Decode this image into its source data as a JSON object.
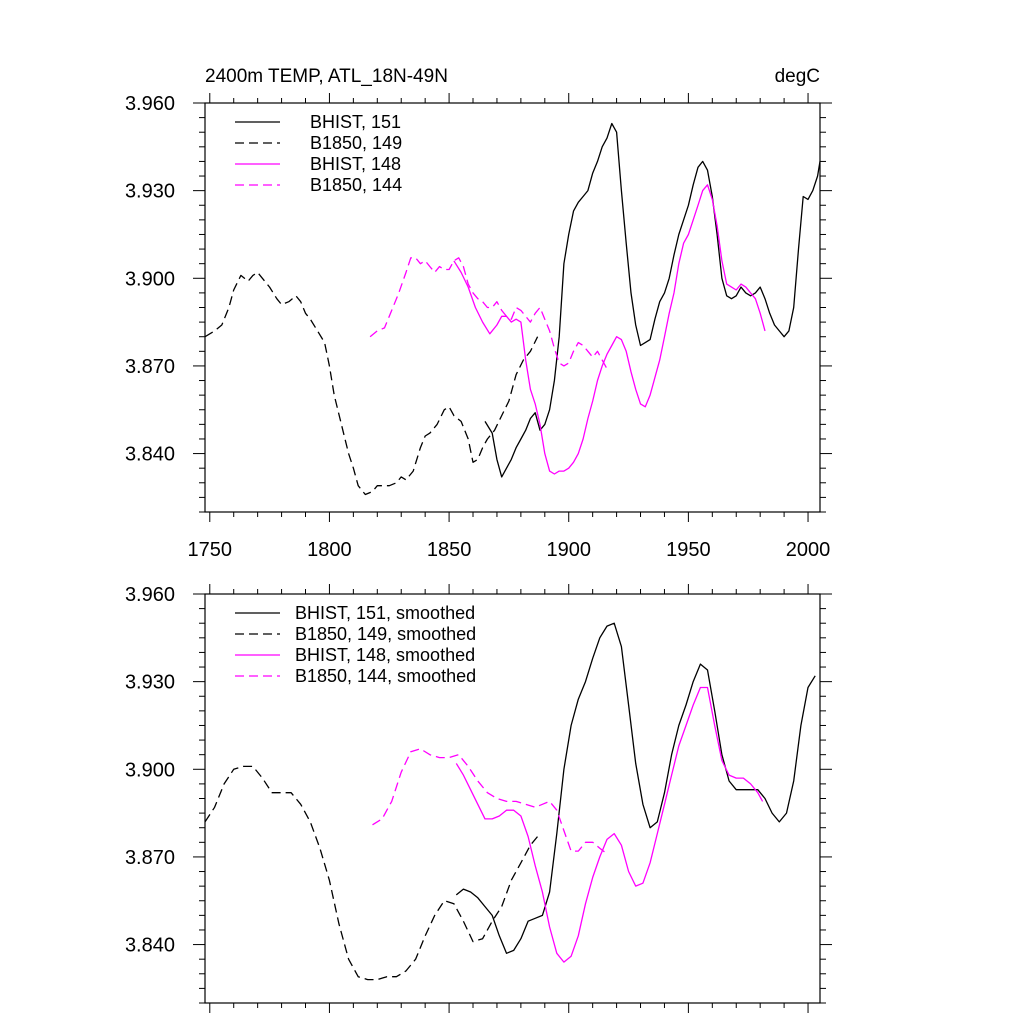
{
  "colors": {
    "black": "#000000",
    "magenta": "#ff00ff"
  },
  "chart_data": [
    {
      "type": "line",
      "title_left": "2400m TEMP, ATL_18N-49N",
      "title_right": "degC",
      "xlabel": "",
      "ylabel": "",
      "xlim": [
        1748,
        2005
      ],
      "ylim": [
        3.82,
        3.96
      ],
      "xticks": [
        1750,
        1800,
        1850,
        1900,
        1950,
        2000
      ],
      "xtick_labels": [
        "1750",
        "1800",
        "1850",
        "1900",
        "1950",
        "2000"
      ],
      "yticks": [
        3.84,
        3.87,
        3.9,
        3.93,
        3.96
      ],
      "ytick_labels": [
        "3.840",
        "3.870",
        "3.900",
        "3.930",
        "3.960"
      ],
      "legend_position": "top-left",
      "series": [
        {
          "name": "BHIST, 151",
          "color": "#000000",
          "dash": "solid",
          "x": [
            1865,
            1868,
            1870,
            1872,
            1874,
            1876,
            1878,
            1880,
            1882,
            1884,
            1886,
            1888,
            1890,
            1892,
            1894,
            1896,
            1898,
            1900,
            1902,
            1904,
            1906,
            1908,
            1910,
            1912,
            1914,
            1916,
            1918,
            1920,
            1922,
            1924,
            1926,
            1928,
            1930,
            1932,
            1934,
            1936,
            1938,
            1940,
            1942,
            1944,
            1946,
            1948,
            1950,
            1952,
            1954,
            1956,
            1958,
            1960,
            1962,
            1964,
            1966,
            1968,
            1970,
            1972,
            1974,
            1976,
            1978,
            1980,
            1982,
            1984,
            1986,
            1988,
            1990,
            1992,
            1994,
            1996,
            1998,
            2000,
            2002,
            2004,
            2005
          ],
          "y": [
            3.851,
            3.847,
            3.838,
            3.832,
            3.835,
            3.838,
            3.842,
            3.845,
            3.848,
            3.852,
            3.854,
            3.848,
            3.85,
            3.855,
            3.865,
            3.88,
            3.905,
            3.915,
            3.923,
            3.926,
            3.928,
            3.93,
            3.936,
            3.94,
            3.945,
            3.948,
            3.953,
            3.95,
            3.93,
            3.912,
            3.895,
            3.884,
            3.877,
            3.878,
            3.879,
            3.886,
            3.892,
            3.895,
            3.9,
            3.908,
            3.915,
            3.92,
            3.925,
            3.932,
            3.938,
            3.94,
            3.937,
            3.928,
            3.915,
            3.9,
            3.894,
            3.893,
            3.894,
            3.897,
            3.895,
            3.894,
            3.895,
            3.897,
            3.893,
            3.888,
            3.884,
            3.882,
            3.88,
            3.882,
            3.89,
            3.91,
            3.928,
            3.927,
            3.93,
            3.935,
            3.94
          ]
        },
        {
          "name": "B1850, 149",
          "color": "#000000",
          "dash": "dashed",
          "x": [
            1748,
            1752,
            1755,
            1758,
            1760,
            1763,
            1766,
            1768,
            1770,
            1772,
            1775,
            1778,
            1780,
            1783,
            1786,
            1788,
            1790,
            1792,
            1795,
            1798,
            1800,
            1802,
            1805,
            1808,
            1810,
            1812,
            1815,
            1818,
            1820,
            1822,
            1825,
            1828,
            1830,
            1832,
            1835,
            1838,
            1840,
            1842,
            1845,
            1848,
            1850,
            1852,
            1855,
            1858,
            1860,
            1862,
            1864,
            1866,
            1869,
            1872,
            1875,
            1878,
            1881,
            1884,
            1887
          ],
          "y": [
            3.88,
            3.882,
            3.884,
            3.89,
            3.896,
            3.901,
            3.899,
            3.901,
            3.902,
            3.9,
            3.897,
            3.893,
            3.891,
            3.892,
            3.894,
            3.892,
            3.888,
            3.886,
            3.882,
            3.878,
            3.87,
            3.86,
            3.85,
            3.84,
            3.835,
            3.829,
            3.826,
            3.827,
            3.829,
            3.829,
            3.829,
            3.83,
            3.832,
            3.831,
            3.834,
            3.842,
            3.846,
            3.847,
            3.85,
            3.855,
            3.856,
            3.853,
            3.851,
            3.845,
            3.837,
            3.838,
            3.842,
            3.845,
            3.848,
            3.853,
            3.858,
            3.867,
            3.872,
            3.875,
            3.88
          ]
        },
        {
          "name": "BHIST, 148",
          "color": "#ff00ff",
          "dash": "solid",
          "x": [
            1852,
            1855,
            1858,
            1861,
            1864,
            1867,
            1870,
            1872,
            1874,
            1876,
            1878,
            1880,
            1882,
            1884,
            1886,
            1888,
            1890,
            1892,
            1894,
            1896,
            1898,
            1900,
            1902,
            1904,
            1906,
            1908,
            1910,
            1912,
            1914,
            1916,
            1918,
            1920,
            1922,
            1924,
            1926,
            1928,
            1930,
            1932,
            1934,
            1936,
            1938,
            1940,
            1942,
            1944,
            1946,
            1948,
            1950,
            1952,
            1954,
            1956,
            1958,
            1960,
            1962,
            1964,
            1966,
            1968,
            1970,
            1972,
            1974,
            1976,
            1978,
            1980,
            1982
          ],
          "y": [
            3.906,
            3.902,
            3.897,
            3.89,
            3.885,
            3.881,
            3.884,
            3.887,
            3.887,
            3.885,
            3.886,
            3.885,
            3.872,
            3.862,
            3.857,
            3.85,
            3.84,
            3.834,
            3.833,
            3.834,
            3.834,
            3.835,
            3.837,
            3.84,
            3.845,
            3.852,
            3.858,
            3.865,
            3.87,
            3.874,
            3.877,
            3.88,
            3.879,
            3.875,
            3.868,
            3.862,
            3.857,
            3.856,
            3.86,
            3.866,
            3.872,
            3.88,
            3.888,
            3.895,
            3.905,
            3.912,
            3.915,
            3.92,
            3.925,
            3.93,
            3.932,
            3.927,
            3.918,
            3.906,
            3.898,
            3.897,
            3.896,
            3.898,
            3.897,
            3.895,
            3.893,
            3.888,
            3.882
          ]
        },
        {
          "name": "B1850, 144",
          "color": "#ff00ff",
          "dash": "dashed",
          "x": [
            1817,
            1820,
            1823,
            1826,
            1829,
            1832,
            1834,
            1836,
            1838,
            1840,
            1842,
            1844,
            1846,
            1848,
            1850,
            1852,
            1854,
            1856,
            1858,
            1860,
            1862,
            1864,
            1866,
            1868,
            1870,
            1872,
            1874,
            1876,
            1878,
            1880,
            1882,
            1884,
            1886,
            1888,
            1890,
            1892,
            1894,
            1896,
            1898,
            1900,
            1902,
            1904,
            1906,
            1908,
            1910,
            1912,
            1914,
            1916
          ],
          "y": [
            3.88,
            3.882,
            3.883,
            3.889,
            3.895,
            3.902,
            3.907,
            3.907,
            3.905,
            3.906,
            3.904,
            3.902,
            3.904,
            3.903,
            3.903,
            3.906,
            3.907,
            3.904,
            3.898,
            3.895,
            3.893,
            3.892,
            3.89,
            3.89,
            3.892,
            3.889,
            3.887,
            3.886,
            3.89,
            3.889,
            3.887,
            3.885,
            3.888,
            3.89,
            3.886,
            3.882,
            3.876,
            3.871,
            3.87,
            3.871,
            3.875,
            3.878,
            3.877,
            3.875,
            3.873,
            3.875,
            3.872,
            3.869
          ]
        }
      ]
    },
    {
      "type": "line",
      "xlabel": "",
      "ylabel": "",
      "xlim": [
        1748,
        2005
      ],
      "ylim": [
        3.82,
        3.96
      ],
      "xticks": [
        1750,
        1800,
        1850,
        1900,
        1950,
        2000
      ],
      "yticks": [
        3.84,
        3.87,
        3.9,
        3.93,
        3.96
      ],
      "ytick_labels": [
        "3.840",
        "3.870",
        "3.900",
        "3.930",
        "3.960"
      ],
      "legend_position": "top-left",
      "series": [
        {
          "name": "BHIST, 151, smoothed",
          "color": "#000000",
          "dash": "solid",
          "x": [
            1853,
            1856,
            1859,
            1862,
            1865,
            1868,
            1871,
            1874,
            1877,
            1880,
            1883,
            1886,
            1889,
            1892,
            1895,
            1898,
            1901,
            1904,
            1907,
            1910,
            1913,
            1916,
            1919,
            1922,
            1925,
            1928,
            1931,
            1934,
            1937,
            1940,
            1943,
            1946,
            1949,
            1952,
            1955,
            1958,
            1961,
            1964,
            1967,
            1970,
            1973,
            1976,
            1979,
            1982,
            1985,
            1988,
            1991,
            1994,
            1997,
            2000,
            2003
          ],
          "y": [
            3.857,
            3.859,
            3.858,
            3.856,
            3.853,
            3.85,
            3.843,
            3.837,
            3.838,
            3.842,
            3.848,
            3.849,
            3.85,
            3.858,
            3.878,
            3.9,
            3.915,
            3.924,
            3.93,
            3.938,
            3.945,
            3.949,
            3.95,
            3.942,
            3.922,
            3.902,
            3.888,
            3.88,
            3.882,
            3.892,
            3.905,
            3.915,
            3.922,
            3.93,
            3.936,
            3.934,
            3.92,
            3.905,
            3.896,
            3.893,
            3.893,
            3.893,
            3.893,
            3.89,
            3.885,
            3.882,
            3.885,
            3.896,
            3.915,
            3.928,
            3.932
          ]
        },
        {
          "name": "B1850, 149, smoothed",
          "color": "#000000",
          "dash": "dashed",
          "x": [
            1748,
            1752,
            1756,
            1760,
            1764,
            1768,
            1772,
            1776,
            1780,
            1784,
            1788,
            1792,
            1796,
            1800,
            1804,
            1808,
            1812,
            1816,
            1820,
            1824,
            1828,
            1832,
            1836,
            1840,
            1844,
            1848,
            1852,
            1856,
            1860,
            1864,
            1868,
            1872,
            1876,
            1880,
            1884,
            1887
          ],
          "y": [
            3.882,
            3.887,
            3.895,
            3.9,
            3.901,
            3.901,
            3.897,
            3.892,
            3.892,
            3.892,
            3.888,
            3.882,
            3.873,
            3.862,
            3.847,
            3.835,
            3.829,
            3.828,
            3.828,
            3.829,
            3.829,
            3.831,
            3.835,
            3.843,
            3.85,
            3.855,
            3.854,
            3.848,
            3.841,
            3.842,
            3.848,
            3.853,
            3.862,
            3.868,
            3.874,
            3.877
          ]
        },
        {
          "name": "BHIST, 148, smoothed",
          "color": "#ff00ff",
          "dash": "solid",
          "x": [
            1853,
            1856,
            1859,
            1862,
            1865,
            1868,
            1871,
            1874,
            1877,
            1880,
            1883,
            1886,
            1889,
            1892,
            1895,
            1898,
            1901,
            1904,
            1907,
            1910,
            1913,
            1916,
            1919,
            1922,
            1925,
            1928,
            1931,
            1934,
            1937,
            1940,
            1943,
            1946,
            1949,
            1952,
            1955,
            1958,
            1961,
            1964,
            1967,
            1970,
            1973,
            1976,
            1979,
            1981
          ],
          "y": [
            3.902,
            3.898,
            3.893,
            3.888,
            3.883,
            3.883,
            3.884,
            3.886,
            3.886,
            3.884,
            3.877,
            3.867,
            3.858,
            3.846,
            3.837,
            3.834,
            3.836,
            3.843,
            3.854,
            3.863,
            3.87,
            3.876,
            3.878,
            3.874,
            3.865,
            3.86,
            3.861,
            3.868,
            3.878,
            3.888,
            3.898,
            3.908,
            3.915,
            3.922,
            3.928,
            3.928,
            3.915,
            3.903,
            3.898,
            3.897,
            3.897,
            3.895,
            3.892,
            3.889
          ]
        },
        {
          "name": "B1850, 144, smoothed",
          "color": "#ff00ff",
          "dash": "dashed",
          "x": [
            1818,
            1822,
            1826,
            1830,
            1834,
            1838,
            1842,
            1846,
            1850,
            1854,
            1858,
            1862,
            1866,
            1870,
            1874,
            1878,
            1882,
            1886,
            1889,
            1892,
            1895,
            1898,
            1901,
            1904,
            1907,
            1910,
            1913,
            1916
          ],
          "y": [
            3.881,
            3.883,
            3.889,
            3.899,
            3.906,
            3.907,
            3.905,
            3.904,
            3.904,
            3.905,
            3.901,
            3.896,
            3.892,
            3.89,
            3.889,
            3.889,
            3.888,
            3.887,
            3.888,
            3.889,
            3.886,
            3.879,
            3.872,
            3.872,
            3.875,
            3.875,
            3.873,
            3.871
          ]
        }
      ]
    }
  ]
}
